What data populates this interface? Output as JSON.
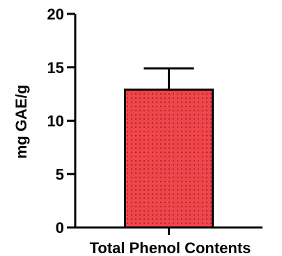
{
  "chart_data": {
    "type": "bar",
    "title": "",
    "xlabel": "",
    "ylabel": "mg GAE/g",
    "categories": [
      "Total Phenol Contents"
    ],
    "values": [
      12.9
    ],
    "error": [
      2.0
    ],
    "ylim": [
      0,
      20
    ],
    "yticks": [
      0,
      5,
      10,
      15,
      20
    ],
    "grid": false,
    "legend": "none",
    "bar_color": "#f0454a",
    "dot_color": "#7a1a1e",
    "axis_color": "#000000"
  }
}
